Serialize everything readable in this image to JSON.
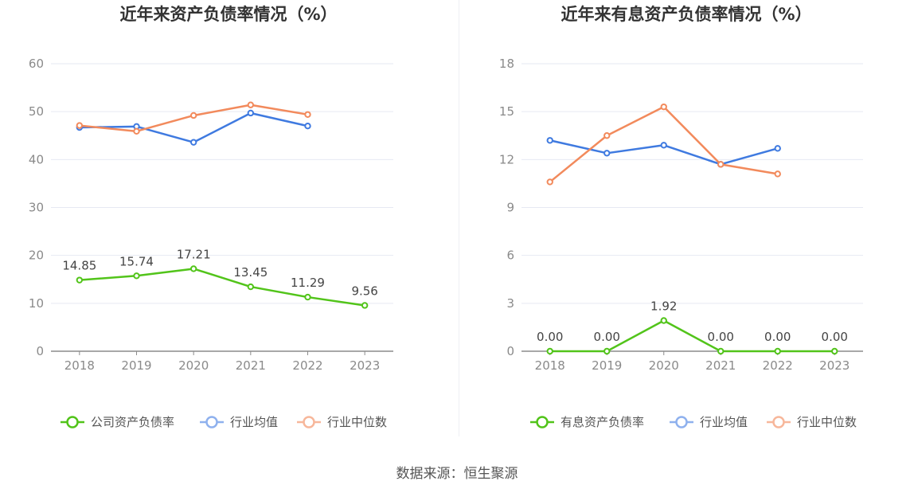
{
  "source": "数据来源：恒生聚源",
  "chart_data": [
    {
      "type": "line",
      "title": "近年来资产负债率情况（%）",
      "categories": [
        "2018",
        "2019",
        "2020",
        "2021",
        "2022",
        "2023"
      ],
      "ylim": [
        0,
        60
      ],
      "yticks": [
        0,
        10,
        20,
        30,
        40,
        50,
        60
      ],
      "grid": true,
      "legend_position": "bottom",
      "series": [
        {
          "name": "公司资产负债率",
          "color": "#52c41a",
          "values": [
            14.85,
            15.74,
            17.21,
            13.45,
            11.29,
            9.56
          ],
          "labels": [
            "14.85",
            "15.74",
            "17.21",
            "13.45",
            "11.29",
            "9.56"
          ]
        },
        {
          "name": "行业均值",
          "color": "#3f7ae0",
          "values": [
            46.7,
            46.9,
            43.6,
            49.7,
            47.0,
            null
          ]
        },
        {
          "name": "行业中位数",
          "color": "#f28a5c",
          "values": [
            47.1,
            45.9,
            49.2,
            51.4,
            49.4,
            null
          ]
        }
      ]
    },
    {
      "type": "line",
      "title": "近年来有息资产负债率情况（%）",
      "categories": [
        "2018",
        "2019",
        "2020",
        "2021",
        "2022",
        "2023"
      ],
      "ylim": [
        0,
        18
      ],
      "yticks": [
        0,
        3,
        6,
        9,
        12,
        15,
        18
      ],
      "grid": true,
      "legend_position": "bottom",
      "series": [
        {
          "name": "有息资产负债率",
          "color": "#52c41a",
          "values": [
            0.0,
            0.0,
            1.92,
            0.0,
            0.0,
            0.0
          ],
          "labels": [
            "0.00",
            "0.00",
            "1.92",
            "0.00",
            "0.00",
            "0.00"
          ]
        },
        {
          "name": "行业均值",
          "color": "#3f7ae0",
          "values": [
            13.2,
            12.4,
            12.9,
            11.7,
            12.7,
            null
          ]
        },
        {
          "name": "行业中位数",
          "color": "#f28a5c",
          "values": [
            10.6,
            13.5,
            15.3,
            11.7,
            11.1,
            null
          ]
        }
      ]
    }
  ]
}
